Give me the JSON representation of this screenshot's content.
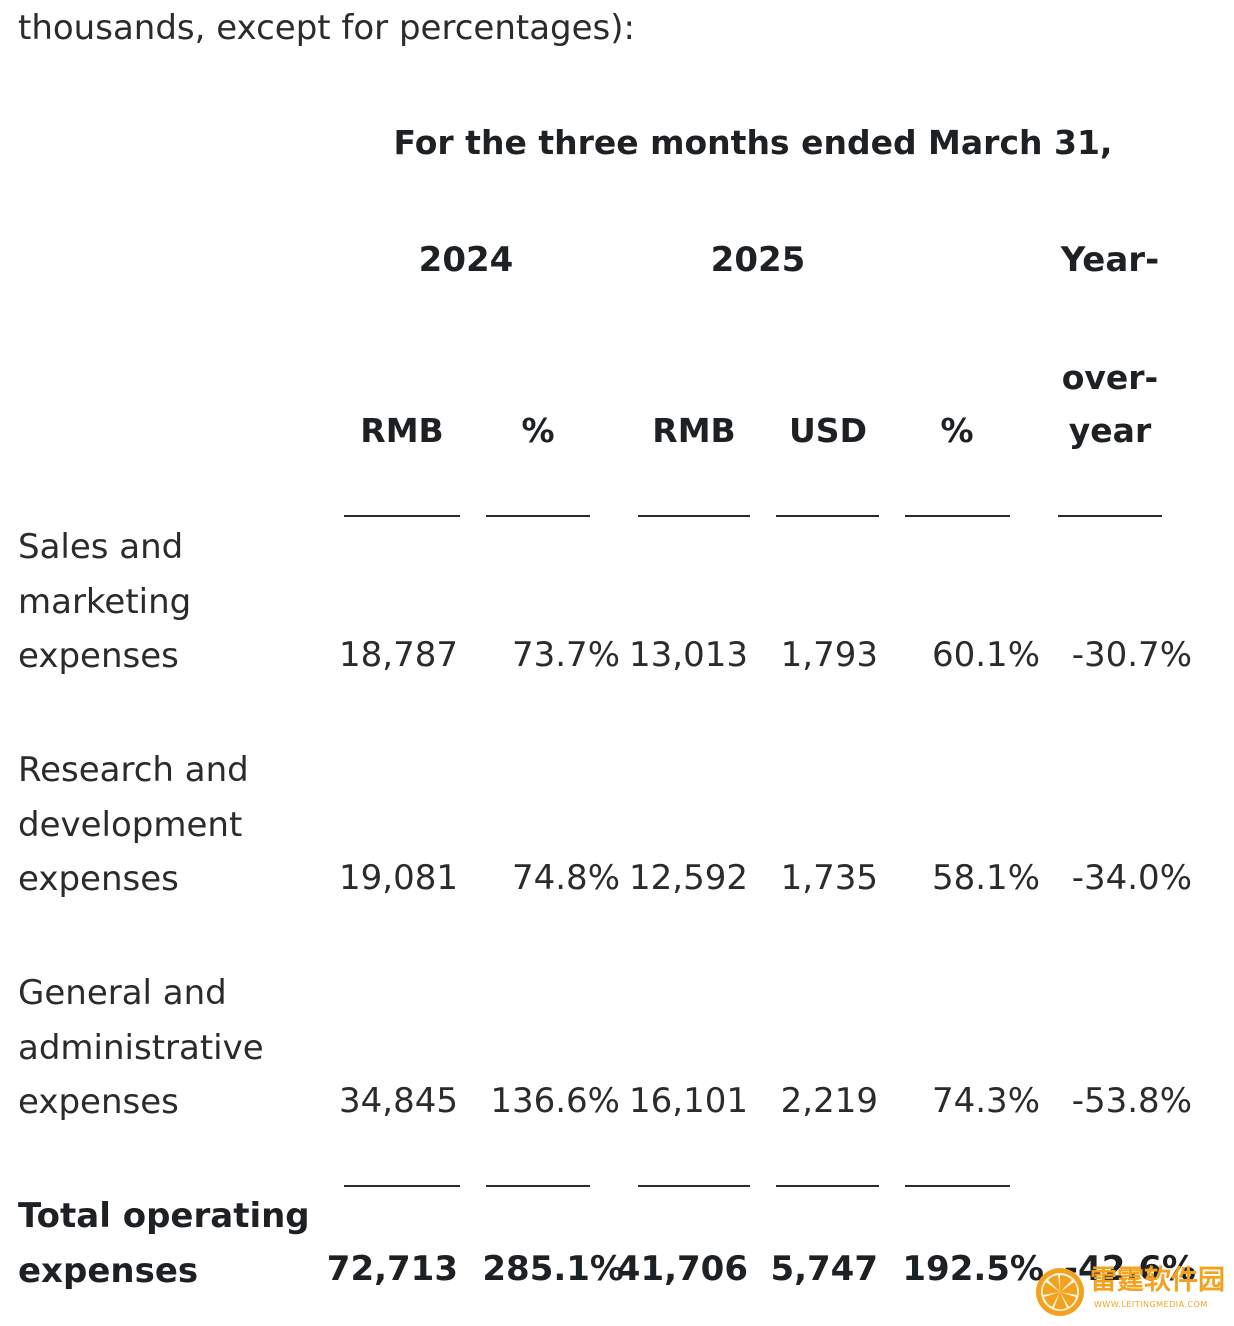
{
  "intro": "thousands, except for percentages):",
  "period_header": "For the three months ended March 31,",
  "years": {
    "y2024": "2024",
    "y2025": "2025",
    "yoy_line1": "Year-"
  },
  "columns": {
    "rmb_2024": "RMB",
    "pct_2024": "%",
    "rmb_2025": "RMB",
    "usd_2025": "USD",
    "pct_2025": "%",
    "yoy_line2": "over-",
    "yoy_line3": "year"
  },
  "rows": [
    {
      "label": "Sales and marketing expenses",
      "rmb_2024": "18,787",
      "pct_2024": "73.7%",
      "rmb_2025": "13,013",
      "usd_2025": "1,793",
      "pct_2025": "60.1%",
      "yoy": "-30.7%"
    },
    {
      "label": "Research and development expenses",
      "rmb_2024": "19,081",
      "pct_2024": "74.8%",
      "rmb_2025": "12,592",
      "usd_2025": "1,735",
      "pct_2025": "58.1%",
      "yoy": "-34.0%"
    },
    {
      "label": "General and administrative expenses",
      "rmb_2024": "34,845",
      "pct_2024": "136.6%",
      "rmb_2025": "16,101",
      "usd_2025": "2,219",
      "pct_2025": "74.3%",
      "yoy": "-53.8%"
    }
  ],
  "total": {
    "label": "Total operating expenses",
    "rmb_2024": "72,713",
    "pct_2024": "285.1%",
    "rmb_2025": "41,706",
    "usd_2025": "5,747",
    "pct_2025": "192.5%",
    "yoy": "-42.6%"
  },
  "watermark": {
    "text": "雷霆软件园",
    "sub": "WWW.LEITINGMEDIA.COM",
    "color": "#f3a21d"
  }
}
